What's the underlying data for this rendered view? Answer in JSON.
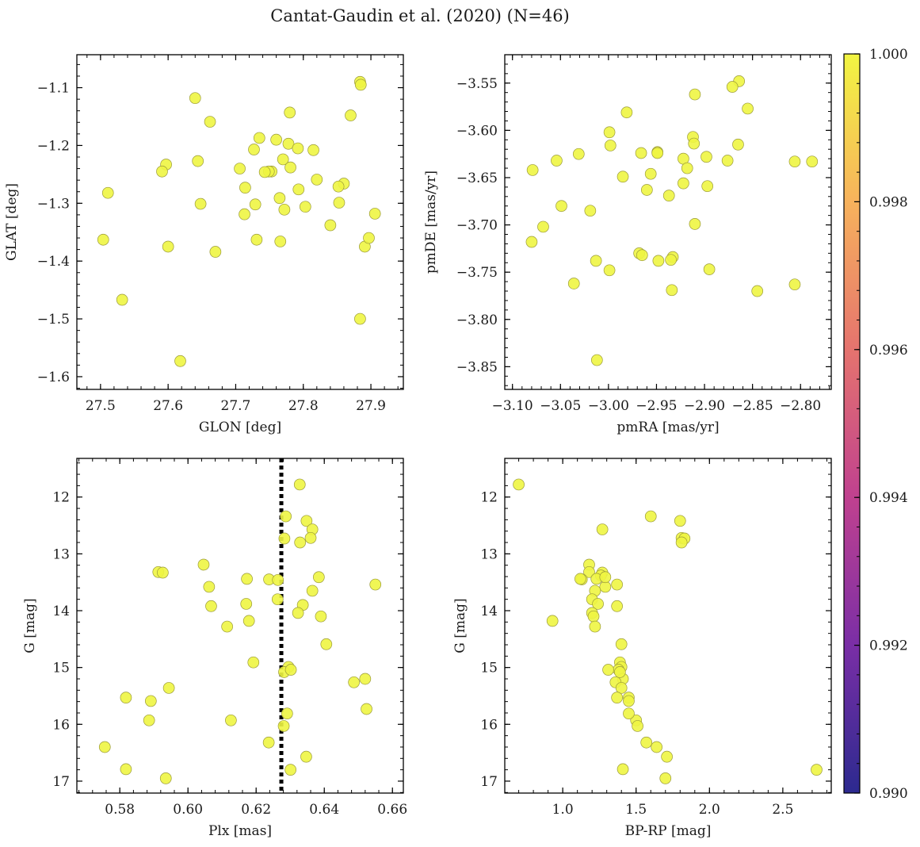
{
  "figure": {
    "title": "Cantat-Gaudin et al. (2020) (N=46)",
    "marker_color": "#eef542",
    "marker_edge": "#9a9a3a"
  },
  "colorbar": {
    "min": 0.99,
    "max": 1.0,
    "ticks": [
      "0.990",
      "0.992",
      "0.994",
      "0.996",
      "0.998",
      "1.000"
    ],
    "tick_values": [
      0.99,
      0.992,
      0.994,
      0.996,
      0.998,
      1.0
    ],
    "colors": [
      "#2c2a8f",
      "#7a2ea6",
      "#c0418f",
      "#e5736e",
      "#f7b25c",
      "#f2f542"
    ]
  },
  "chart_data": [
    {
      "id": "glon-glat",
      "type": "scatter",
      "xlabel": "GLON [deg]",
      "ylabel": "GLAT [deg]",
      "xlim": [
        27.465,
        27.948
      ],
      "ylim": [
        -1.622,
        -1.043
      ],
      "xticks": [
        27.5,
        27.6,
        27.7,
        27.8,
        27.9
      ],
      "xtick_labels": [
        "27.5",
        "27.6",
        "27.7",
        "27.8",
        "27.9"
      ],
      "yticks": [
        -1.1,
        -1.2,
        -1.3,
        -1.4,
        -1.5,
        -1.6
      ],
      "ytick_labels": [
        "−1.1",
        "−1.2",
        "−1.3",
        "−1.4",
        "−1.5",
        "−1.6"
      ],
      "x": [
        27.884,
        27.885,
        27.64,
        27.78,
        27.662,
        27.87,
        27.735,
        27.76,
        27.778,
        27.792,
        27.815,
        27.727,
        27.597,
        27.591,
        27.644,
        27.706,
        27.77,
        27.753,
        27.749,
        27.781,
        27.743,
        27.511,
        27.714,
        27.82,
        27.86,
        27.852,
        27.765,
        27.793,
        27.648,
        27.853,
        27.729,
        27.772,
        27.803,
        27.906,
        27.713,
        27.84,
        27.504,
        27.731,
        27.766,
        27.6,
        27.891,
        27.897,
        27.67,
        27.532,
        27.884,
        27.618
      ],
      "y": [
        -1.09,
        -1.095,
        -1.118,
        -1.143,
        -1.159,
        -1.148,
        -1.187,
        -1.19,
        -1.197,
        -1.205,
        -1.208,
        -1.207,
        -1.233,
        -1.245,
        -1.227,
        -1.24,
        -1.224,
        -1.245,
        -1.245,
        -1.238,
        -1.246,
        -1.282,
        -1.273,
        -1.259,
        -1.266,
        -1.271,
        -1.291,
        -1.276,
        -1.301,
        -1.299,
        -1.302,
        -1.311,
        -1.306,
        -1.318,
        -1.319,
        -1.338,
        -1.363,
        -1.363,
        -1.366,
        -1.375,
        -1.375,
        -1.36,
        -1.384,
        -1.467,
        -1.5,
        -1.573
      ]
    },
    {
      "id": "pmra-pmde",
      "type": "scatter",
      "xlabel": "pmRA [mas/yr]",
      "ylabel": "pmDE [mas/yr]",
      "xlim": [
        -3.108,
        -2.768
      ],
      "ylim": [
        -3.874,
        -3.52
      ],
      "xticks": [
        -3.1,
        -3.05,
        -3.0,
        -2.95,
        -2.9,
        -2.85,
        -2.8
      ],
      "xtick_labels": [
        "−3.10",
        "−3.05",
        "−3.00",
        "−2.95",
        "−2.90",
        "−2.85",
        "−2.80"
      ],
      "yticks": [
        -3.55,
        -3.6,
        -3.65,
        -3.7,
        -3.75,
        -3.8,
        -3.85
      ],
      "ytick_labels": [
        "−3.55",
        "−3.60",
        "−3.65",
        "−3.70",
        "−3.75",
        "−3.80",
        "−3.85"
      ],
      "x": [
        -2.864,
        -2.871,
        -2.91,
        -2.855,
        -2.981,
        -2.999,
        -2.912,
        -2.998,
        -2.911,
        -2.966,
        -2.949,
        -2.949,
        -2.865,
        -2.876,
        -2.922,
        -3.031,
        -3.054,
        -3.079,
        -2.806,
        -2.788,
        -2.898,
        -2.956,
        -2.985,
        -2.918,
        -2.937,
        -2.897,
        -2.96,
        -3.019,
        -3.049,
        -3.068,
        -2.91,
        -3.08,
        -3.013,
        -2.968,
        -2.965,
        -2.933,
        -2.935,
        -2.948,
        -2.999,
        -3.036,
        -2.806,
        -2.895,
        -2.934,
        -2.845,
        -3.012,
        -2.922
      ],
      "y": [
        -3.548,
        -3.554,
        -3.562,
        -3.577,
        -3.581,
        -3.602,
        -3.607,
        -3.616,
        -3.614,
        -3.624,
        -3.623,
        -3.624,
        -3.615,
        -3.632,
        -3.63,
        -3.625,
        -3.632,
        -3.642,
        -3.633,
        -3.633,
        -3.628,
        -3.646,
        -3.649,
        -3.64,
        -3.669,
        -3.659,
        -3.663,
        -3.685,
        -3.68,
        -3.702,
        -3.699,
        -3.718,
        -3.738,
        -3.73,
        -3.732,
        -3.734,
        -3.737,
        -3.738,
        -3.748,
        -3.762,
        -3.763,
        -3.747,
        -3.769,
        -3.77,
        -3.843,
        -3.656
      ]
    },
    {
      "id": "plx-g",
      "type": "scatter",
      "xlabel": "Plx [mas]",
      "ylabel": "G [mag]",
      "xlim": [
        0.5674,
        0.6632
      ],
      "ylim": [
        17.21,
        11.32
      ],
      "xticks": [
        0.58,
        0.6,
        0.62,
        0.64,
        0.66
      ],
      "xtick_labels": [
        "0.58",
        "0.60",
        "0.62",
        "0.64",
        "0.66"
      ],
      "yticks": [
        12,
        13,
        14,
        15,
        16,
        17
      ],
      "ytick_labels": [
        "12",
        "13",
        "14",
        "15",
        "16",
        "17"
      ],
      "vline": 0.6274,
      "x": [
        0.6328,
        0.6287,
        0.6348,
        0.6365,
        0.636,
        0.6283,
        0.6329,
        0.6046,
        0.5913,
        0.5926,
        0.6238,
        0.6264,
        0.6173,
        0.6384,
        0.6365,
        0.655,
        0.6062,
        0.6068,
        0.6171,
        0.6263,
        0.6337,
        0.6323,
        0.639,
        0.6179,
        0.6115,
        0.6406,
        0.6192,
        0.6295,
        0.6282,
        0.6302,
        0.652,
        0.6487,
        0.5944,
        0.6524,
        0.5891,
        0.6291,
        0.5818,
        0.5886,
        0.6126,
        0.6281,
        0.6237,
        0.6347,
        0.5756,
        0.5818,
        0.6301,
        0.5935
      ],
      "y": [
        11.78,
        12.34,
        12.42,
        12.57,
        12.72,
        12.73,
        12.8,
        13.19,
        13.32,
        13.33,
        13.45,
        13.46,
        13.44,
        13.41,
        13.65,
        13.54,
        13.58,
        13.92,
        13.88,
        13.8,
        13.9,
        14.04,
        14.1,
        14.18,
        14.28,
        14.59,
        14.91,
        14.99,
        15.08,
        15.04,
        15.2,
        15.26,
        15.36,
        15.73,
        15.59,
        15.81,
        15.53,
        15.93,
        15.93,
        16.03,
        16.32,
        16.57,
        16.4,
        16.79,
        16.8,
        16.95
      ]
    },
    {
      "id": "bprp-g",
      "type": "scatter",
      "xlabel": "BP-RP [mag]",
      "ylabel": "G [mag]",
      "xlim": [
        0.605,
        2.83
      ],
      "ylim": [
        17.21,
        11.32
      ],
      "xticks": [
        1.0,
        1.5,
        2.0,
        2.5
      ],
      "xtick_labels": [
        "1.0",
        "1.5",
        "2.0",
        "2.5"
      ],
      "yticks": [
        12,
        13,
        14,
        15,
        16,
        17
      ],
      "ytick_labels": [
        "12",
        "13",
        "14",
        "15",
        "16",
        "17"
      ],
      "x": [
        0.7,
        1.6,
        1.8,
        1.27,
        1.81,
        1.83,
        1.81,
        1.18,
        1.18,
        1.27,
        1.26,
        1.13,
        1.12,
        1.23,
        1.29,
        1.22,
        1.37,
        1.29,
        1.2,
        1.24,
        1.37,
        1.2,
        1.21,
        0.93,
        1.22,
        1.4,
        1.39,
        1.4,
        1.38,
        1.31,
        1.41,
        1.36,
        1.4,
        1.45,
        1.37,
        1.45,
        1.5,
        1.45,
        1.51,
        1.57,
        1.64,
        1.71,
        1.41,
        1.7,
        2.73,
        1.39
      ],
      "y": [
        11.78,
        12.34,
        12.42,
        12.57,
        12.72,
        12.73,
        12.8,
        13.19,
        13.32,
        13.33,
        13.38,
        13.45,
        13.44,
        13.44,
        13.58,
        13.65,
        13.54,
        13.41,
        13.8,
        13.88,
        13.92,
        14.04,
        14.1,
        14.18,
        14.28,
        14.59,
        14.91,
        14.99,
        15.04,
        15.04,
        15.2,
        15.26,
        15.36,
        15.53,
        15.53,
        15.59,
        15.93,
        15.81,
        16.03,
        16.32,
        16.4,
        16.57,
        16.79,
        16.95,
        16.8,
        15.08
      ]
    }
  ]
}
